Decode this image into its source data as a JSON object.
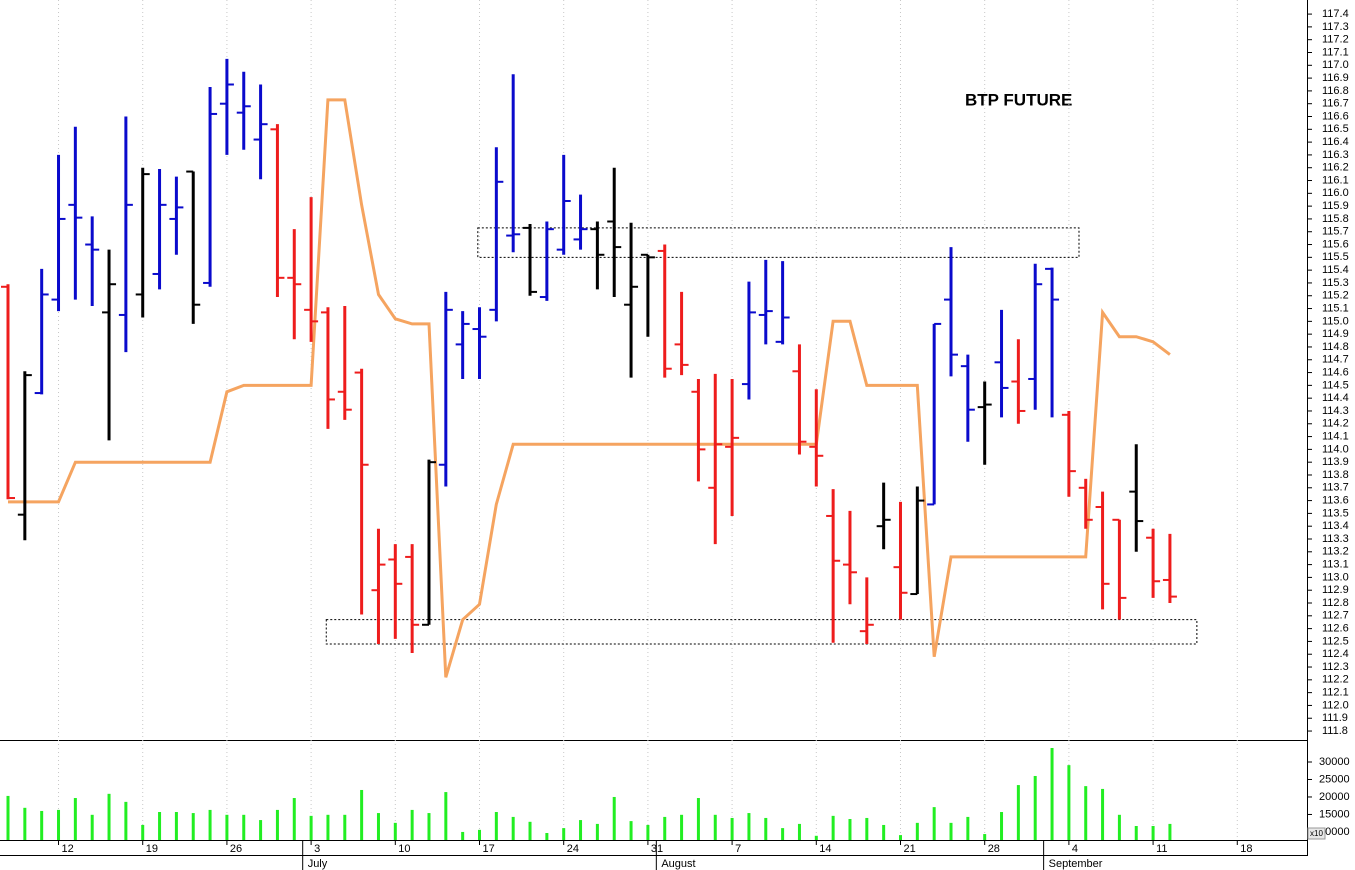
{
  "chart_data": {
    "type": "ohlc",
    "title": "BTP FUTURE",
    "x": [
      0,
      1,
      2,
      3,
      4,
      5,
      6,
      7,
      8,
      9,
      10,
      11,
      12,
      13,
      14,
      15,
      16,
      17,
      18,
      19,
      20,
      21,
      22,
      23,
      24,
      25,
      26,
      27,
      28,
      29,
      30,
      31,
      32,
      33,
      34,
      35,
      36,
      37,
      38,
      39,
      40,
      41,
      42,
      43,
      44,
      45,
      46,
      47,
      48,
      49,
      50,
      51,
      52,
      53,
      54,
      55,
      56,
      57,
      58,
      59,
      60,
      61,
      62,
      63,
      64,
      65,
      66,
      67,
      68,
      69
    ],
    "xlim": [
      -0.475,
      77.14
    ],
    "xticks": [
      {
        "value": 3,
        "label": "12"
      },
      {
        "value": 8,
        "label": "19"
      },
      {
        "value": 13,
        "label": "26"
      },
      {
        "value": 18,
        "label": "3"
      },
      {
        "value": 23,
        "label": "10"
      },
      {
        "value": 28,
        "label": "17"
      },
      {
        "value": 33,
        "label": "24"
      },
      {
        "value": 38,
        "label": "31"
      },
      {
        "value": 43,
        "label": "7"
      },
      {
        "value": 48,
        "label": "14"
      },
      {
        "value": 53,
        "label": "21"
      },
      {
        "value": 58,
        "label": "28"
      },
      {
        "value": 63,
        "label": "4"
      },
      {
        "value": 68,
        "label": "11"
      },
      {
        "value": 73,
        "label": "18"
      }
    ],
    "month_ticks": [
      {
        "value": 17.5,
        "label": "July"
      },
      {
        "value": 38.5,
        "label": "August"
      },
      {
        "value": 61.5,
        "label": "September"
      }
    ],
    "open": [
      115.27,
      113.49,
      114.44,
      115.17,
      115.91,
      115.6,
      115.07,
      115.05,
      115.21,
      115.37,
      115.8,
      116.17,
      115.3,
      116.7,
      116.63,
      116.42,
      116.5,
      115.34,
      115.09,
      115.07,
      114.45,
      114.6,
      112.9,
      113.14,
      113.16,
      112.63,
      113.88,
      114.82,
      114.94,
      115.09,
      115.67,
      115.73,
      115.19,
      115.56,
      115.64,
      115.72,
      115.78,
      115.13,
      115.52,
      115.55,
      114.82,
      114.45,
      113.7,
      114.02,
      114.51,
      115.05,
      114.84,
      114.61,
      114.02,
      113.48,
      113.1,
      112.58,
      113.4,
      113.08,
      112.87,
      113.57,
      115.17,
      114.65,
      114.33,
      114.68,
      114.53,
      114.55,
      115.41,
      114.27,
      113.7,
      113.55,
      113.45,
      113.67,
      113.31,
      112.98
    ],
    "high": [
      115.29,
      114.61,
      115.41,
      116.3,
      116.52,
      115.82,
      115.56,
      116.6,
      116.2,
      116.19,
      116.13,
      116.17,
      116.83,
      117.05,
      116.95,
      116.85,
      116.54,
      115.72,
      115.97,
      115.11,
      115.12,
      114.63,
      113.38,
      113.26,
      113.26,
      113.92,
      115.23,
      115.08,
      115.11,
      116.36,
      116.93,
      115.76,
      115.78,
      116.3,
      115.99,
      115.78,
      116.2,
      115.77,
      115.52,
      115.6,
      115.23,
      114.55,
      114.59,
      114.55,
      115.31,
      115.48,
      115.47,
      114.82,
      114.47,
      113.69,
      113.52,
      113.0,
      113.74,
      113.59,
      113.71,
      114.98,
      115.58,
      114.74,
      114.53,
      115.09,
      114.86,
      115.45,
      115.42,
      114.3,
      113.77,
      113.67,
      113.45,
      114.04,
      113.38,
      113.34
    ],
    "low": [
      113.61,
      113.29,
      114.43,
      115.08,
      115.17,
      115.12,
      114.07,
      114.76,
      115.03,
      115.25,
      115.52,
      114.98,
      115.27,
      116.3,
      116.34,
      116.11,
      115.19,
      114.86,
      114.84,
      114.16,
      114.23,
      112.71,
      112.48,
      112.52,
      112.41,
      112.63,
      113.71,
      114.55,
      114.55,
      115.0,
      115.54,
      115.2,
      115.16,
      115.52,
      115.56,
      115.25,
      115.19,
      114.56,
      114.88,
      114.56,
      114.58,
      113.75,
      113.26,
      113.48,
      114.39,
      114.82,
      114.82,
      113.96,
      113.71,
      112.49,
      112.79,
      112.48,
      113.22,
      112.67,
      112.87,
      113.57,
      114.57,
      114.06,
      113.88,
      114.25,
      114.2,
      114.31,
      114.25,
      113.63,
      113.38,
      112.75,
      112.67,
      113.2,
      112.84,
      112.8
    ],
    "close": [
      113.62,
      114.58,
      115.21,
      115.8,
      115.81,
      115.56,
      115.29,
      115.91,
      116.15,
      115.91,
      115.89,
      115.13,
      116.62,
      116.85,
      116.68,
      116.54,
      115.34,
      115.29,
      115.0,
      114.39,
      114.31,
      113.88,
      113.1,
      112.95,
      112.63,
      113.9,
      115.09,
      114.98,
      114.88,
      116.09,
      115.68,
      115.23,
      115.72,
      115.94,
      115.72,
      115.52,
      115.58,
      115.27,
      115.5,
      114.63,
      114.66,
      114.0,
      114.04,
      114.09,
      115.07,
      115.08,
      115.03,
      114.06,
      113.95,
      113.13,
      113.04,
      112.63,
      113.45,
      112.88,
      113.6,
      114.98,
      114.74,
      114.31,
      114.35,
      114.48,
      114.3,
      115.29,
      115.17,
      113.83,
      113.45,
      112.95,
      112.84,
      113.44,
      112.97,
      112.85
    ],
    "bar_colors": [
      "#ee1c1c",
      "#000000",
      "#0a0acc",
      "#0a0acc",
      "#0a0acc",
      "#0a0acc",
      "#000000",
      "#0a0acc",
      "#000000",
      "#0a0acc",
      "#0a0acc",
      "#000000",
      "#0a0acc",
      "#0a0acc",
      "#0a0acc",
      "#0a0acc",
      "#ee1c1c",
      "#ee1c1c",
      "#ee1c1c",
      "#ee1c1c",
      "#ee1c1c",
      "#ee1c1c",
      "#ee1c1c",
      "#ee1c1c",
      "#ee1c1c",
      "#000000",
      "#0a0acc",
      "#0a0acc",
      "#0a0acc",
      "#0a0acc",
      "#0a0acc",
      "#000000",
      "#0a0acc",
      "#0a0acc",
      "#0a0acc",
      "#000000",
      "#000000",
      "#000000",
      "#000000",
      "#ee1c1c",
      "#ee1c1c",
      "#ee1c1c",
      "#ee1c1c",
      "#ee1c1c",
      "#0a0acc",
      "#0a0acc",
      "#0a0acc",
      "#ee1c1c",
      "#ee1c1c",
      "#ee1c1c",
      "#ee1c1c",
      "#ee1c1c",
      "#000000",
      "#ee1c1c",
      "#000000",
      "#0a0acc",
      "#0a0acc",
      "#0a0acc",
      "#000000",
      "#0a0acc",
      "#ee1c1c",
      "#0a0acc",
      "#0a0acc",
      "#ee1c1c",
      "#ee1c1c",
      "#ee1c1c",
      "#ee1c1c",
      "#000000",
      "#ee1c1c",
      "#ee1c1c"
    ],
    "ylim": [
      111.73,
      117.51
    ],
    "yticks": [
      111.8,
      111.9,
      {
        "value": 112,
        "label": "112.0"
      },
      112.1,
      112.2,
      112.3,
      112.4,
      112.5,
      112.6,
      112.7,
      112.8,
      112.9,
      {
        "value": 113,
        "label": "113.0"
      },
      113.1,
      113.2,
      113.3,
      113.4,
      113.5,
      113.6,
      113.7,
      113.8,
      113.9,
      {
        "value": 114,
        "label": "114.0"
      },
      114.1,
      114.2,
      114.3,
      114.4,
      114.5,
      114.6,
      114.7,
      114.8,
      114.9,
      {
        "value": 115,
        "label": "115.0"
      },
      115.1,
      115.2,
      115.3,
      115.4,
      115.5,
      115.6,
      115.7,
      115.8,
      115.9,
      {
        "value": 116,
        "label": "116.0"
      },
      116.1,
      116.2,
      116.3,
      116.4,
      116.5,
      116.6,
      116.7,
      116.8,
      116.9,
      {
        "value": 117,
        "label": "117.0"
      },
      117.1,
      117.2,
      117.3,
      117.4
    ],
    "grid": true,
    "overlay": {
      "type": "line",
      "color": "#f5a460",
      "values": [
        113.59,
        113.59,
        113.59,
        113.59,
        113.9,
        113.9,
        113.9,
        113.9,
        113.9,
        113.9,
        113.9,
        113.9,
        113.9,
        114.45,
        114.5,
        114.5,
        114.5,
        114.5,
        114.5,
        116.73,
        116.73,
        115.91,
        115.21,
        115.02,
        114.98,
        114.98,
        112.22,
        112.67,
        112.79,
        113.57,
        114.04,
        114.04,
        114.04,
        114.04,
        114.04,
        114.04,
        114.04,
        114.04,
        114.04,
        114.04,
        114.04,
        114.04,
        114.04,
        114.04,
        114.04,
        114.04,
        114.04,
        114.04,
        114.04,
        115.0,
        115.0,
        114.5,
        114.5,
        114.5,
        114.5,
        112.38,
        113.16,
        113.16,
        113.16,
        113.16,
        113.16,
        113.16,
        113.16,
        113.16,
        113.16,
        115.07,
        114.88,
        114.88,
        114.84,
        114.74
      ]
    },
    "boxes": [
      {
        "x": [
          27.9,
          63.6
        ],
        "y": [
          115.5,
          115.73
        ]
      },
      {
        "x": [
          18.9,
          70.6
        ],
        "y": [
          112.48,
          112.67
        ]
      }
    ],
    "volume": {
      "type": "bar",
      "color": "#22ee22",
      "values": [
        20300,
        16900,
        16000,
        16300,
        19700,
        14900,
        20900,
        18600,
        12000,
        15700,
        15700,
        15400,
        16300,
        14900,
        14900,
        13400,
        16300,
        19700,
        14600,
        14900,
        14900,
        22000,
        15400,
        12600,
        16300,
        15400,
        21400,
        10000,
        10600,
        15700,
        14300,
        12900,
        9700,
        11100,
        13400,
        12300,
        20000,
        13100,
        12000,
        14300,
        14900,
        19700,
        14900,
        14000,
        15400,
        14000,
        11100,
        12300,
        8900,
        14600,
        13700,
        14000,
        12000,
        9100,
        12600,
        17100,
        12600,
        14300,
        9400,
        15700,
        23400,
        26000,
        34000,
        29100,
        23100,
        22300,
        14900,
        11700,
        11700,
        12300
      ],
      "ylim": [
        7700,
        36000
      ],
      "yticks": [
        10000,
        15000,
        20000,
        25000,
        30000
      ],
      "multiplier_label": "x10"
    }
  }
}
